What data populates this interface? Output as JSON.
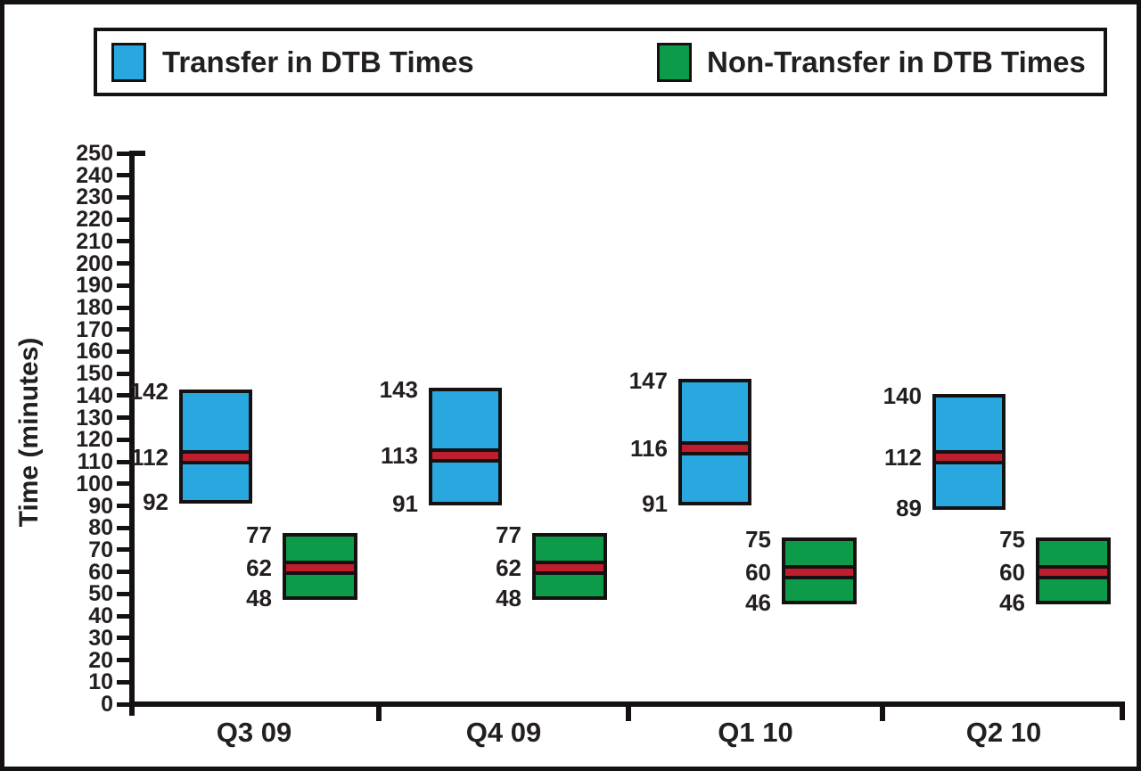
{
  "page": {
    "background": "#ffffff",
    "frame_color": "#151112",
    "ink_color": "#231f20"
  },
  "legend": {
    "items": [
      {
        "label": "Transfer in DTB Times",
        "color": "#29a8e0"
      },
      {
        "label": "Non-Transfer in DTB Times",
        "color": "#0d9b49"
      }
    ]
  },
  "chart_data": {
    "type": "box",
    "title": "",
    "xlabel": "",
    "ylabel": "Time (minutes)",
    "ylim": [
      0,
      250
    ],
    "ytick_step": 10,
    "grid": false,
    "legend_position": "top",
    "median_line_color": "#be1e2d",
    "categories": [
      "Q3 09",
      "Q4 09",
      "Q1 10",
      "Q2 10"
    ],
    "series": [
      {
        "name": "Transfer in DTB Times",
        "color": "#29a8e0",
        "boxes": [
          {
            "high": 142,
            "median": 112,
            "low": 92
          },
          {
            "high": 143,
            "median": 113,
            "low": 91
          },
          {
            "high": 147,
            "median": 116,
            "low": 91
          },
          {
            "high": 140,
            "median": 112,
            "low": 89
          }
        ]
      },
      {
        "name": "Non-Transfer in DTB Times",
        "color": "#0d9b49",
        "boxes": [
          {
            "high": 77,
            "median": 62,
            "low": 48
          },
          {
            "high": 77,
            "median": 62,
            "low": 48
          },
          {
            "high": 75,
            "median": 60,
            "low": 46
          },
          {
            "high": 75,
            "median": 60,
            "low": 46
          }
        ]
      }
    ],
    "annotations": {
      "box_value_labels": [
        "high",
        "median",
        "low"
      ]
    }
  }
}
